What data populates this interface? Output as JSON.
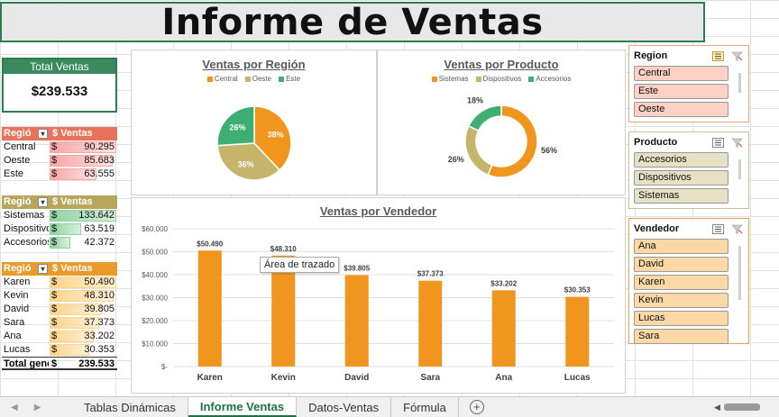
{
  "title": "Informe de Ventas",
  "total": {
    "label": "Total Ventas",
    "value": "$239.533"
  },
  "region_table": {
    "col1": "Regió",
    "col2": "$ Ventas",
    "header_color": "#e8735a",
    "bar_color": "#f8a6a6",
    "rows": [
      {
        "name": "Central",
        "cur": "$",
        "value": "90.295",
        "fraction": 1.0
      },
      {
        "name": "Oeste",
        "cur": "$",
        "value": "85.683",
        "fraction": 0.949
      },
      {
        "name": "Este",
        "cur": "$",
        "value": "63.555",
        "fraction": 0.704
      }
    ]
  },
  "product_table": {
    "col1": "Regió",
    "col2": "$ Ventas",
    "header_color": "#b8a65c",
    "bar_color": "#8fd19e",
    "rows": [
      {
        "name": "Sistemas",
        "cur": "$",
        "value": "133.642",
        "fraction": 1.0
      },
      {
        "name": "Dispositivos",
        "cur": "$",
        "value": "63.519",
        "fraction": 0.475
      },
      {
        "name": "Accesorios",
        "cur": "$",
        "value": "42.372",
        "fraction": 0.317
      }
    ]
  },
  "seller_table": {
    "col1": "Regió",
    "col2": "$ Ventas",
    "header_color": "#e89a2a",
    "bar_color": "#fcd48a",
    "rows": [
      {
        "name": "Karen",
        "cur": "$",
        "value": "50.490",
        "fraction": 1.0
      },
      {
        "name": "Kevin",
        "cur": "$",
        "value": "48.310",
        "fraction": 0.957
      },
      {
        "name": "David",
        "cur": "$",
        "value": "39.805",
        "fraction": 0.788
      },
      {
        "name": "Sara",
        "cur": "$",
        "value": "37.373",
        "fraction": 0.74
      },
      {
        "name": "Ana",
        "cur": "$",
        "value": "33.202",
        "fraction": 0.658
      },
      {
        "name": "Lucas",
        "cur": "$",
        "value": "30.353",
        "fraction": 0.601
      }
    ],
    "total_label": "Total general",
    "total_cur": "$",
    "total_value": "239.533"
  },
  "chart_data": [
    {
      "type": "pie",
      "title": "Ventas por Región",
      "categories": [
        "Central",
        "Oeste",
        "Este"
      ],
      "values": [
        38,
        36,
        26
      ],
      "labels": [
        "38%",
        "36%",
        "26%"
      ],
      "colors": [
        "#f0961e",
        "#c4b56b",
        "#3fae72"
      ],
      "legend": "top"
    },
    {
      "type": "pie",
      "title": "Ventas por Producto",
      "categories": [
        "Sistemas",
        "Dispositivos",
        "Accesorios"
      ],
      "values": [
        56,
        26,
        18
      ],
      "labels": [
        "56%",
        "26%",
        "18%"
      ],
      "colors": [
        "#f0961e",
        "#c4b56b",
        "#3fae72"
      ],
      "legend": "top"
    },
    {
      "type": "bar",
      "title": "Ventas por Vendedor",
      "categories": [
        "Karen",
        "Kevin",
        "David",
        "Sara",
        "Ana",
        "Lucas"
      ],
      "values": [
        50490,
        48310,
        39805,
        37373,
        33202,
        30353
      ],
      "value_labels": [
        "$50.490",
        "$48.310",
        "$39.805",
        "$37.373",
        "$33.202",
        "$30.353"
      ],
      "ylim": [
        0,
        60000
      ],
      "yticks": [
        "$-",
        "$10.000",
        "$20.000",
        "$30.000",
        "$40.000",
        "$50.000",
        "$60.000"
      ],
      "color": "#f0961e",
      "grid": true
    }
  ],
  "tooltip": "Área de trazado",
  "slicers": [
    {
      "title": "Region",
      "items": [
        "Central",
        "Este",
        "Oeste"
      ],
      "item_color": "#fcd0c4"
    },
    {
      "title": "Producto",
      "items": [
        "Accesorios",
        "Dispositivos",
        "Sistemas"
      ],
      "item_color": "#e6e0c4"
    },
    {
      "title": "Vendedor",
      "items": [
        "Ana",
        "David",
        "Karen",
        "Kevin",
        "Lucas",
        "Sara"
      ],
      "item_color": "#fcd8a6"
    }
  ],
  "sheet_tabs": [
    "Tablas Dinámicas",
    "Informe Ventas",
    "Datos-Ventas",
    "Fórmula"
  ],
  "active_tab": 1
}
